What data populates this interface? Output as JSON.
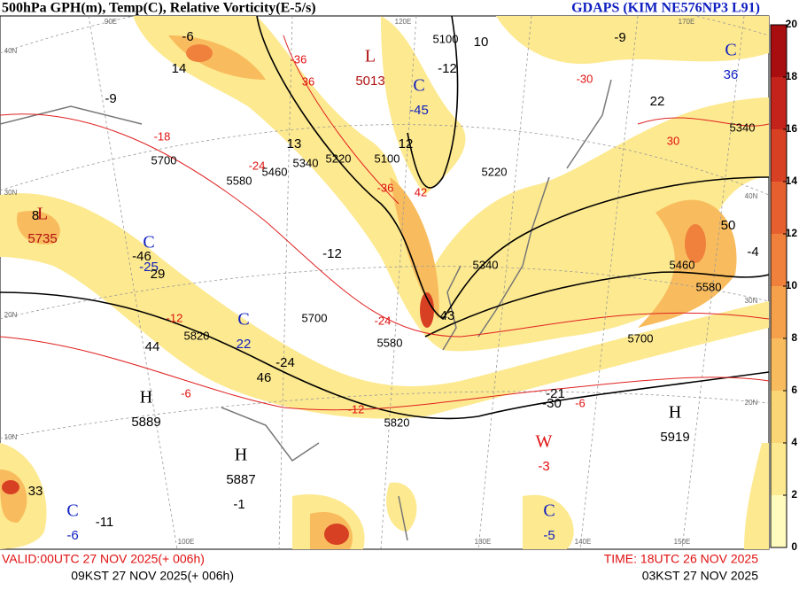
{
  "header": {
    "title": "500hPa GPH(m), Temp(C), Relative Vorticity(E-5/s)",
    "model": "GDAPS (KIM NE576NP3 L91)"
  },
  "colorbar": {
    "ticks": [
      0,
      2,
      4,
      6,
      8,
      10,
      12,
      14,
      16,
      18,
      20
    ],
    "colors": [
      "#fffbbf",
      "#fde98f",
      "#fbd677",
      "#f8bc5e",
      "#f5a04b",
      "#ef813c",
      "#e6602f",
      "#d84024",
      "#c3231a",
      "#a80d10"
    ]
  },
  "footer": {
    "valid_utc": "VALID:00UTC 27 NOV 2025(+ 006h)",
    "valid_kst": "09KST 27 NOV 2025(+ 006h)",
    "time_utc": "TIME: 18UTC 26 NOV 2025",
    "time_kst": "03KST 27 NOV 2025"
  },
  "systems": [
    {
      "letter": "L",
      "value": 5013,
      "color": "#b01010"
    },
    {
      "letter": "C",
      "value": -45,
      "color": "#1020c0"
    },
    {
      "letter": "L",
      "value": 5735,
      "color": "#b01010"
    },
    {
      "letter": "C",
      "value": -25,
      "color": "#1020c0"
    },
    {
      "letter": "C",
      "value": 22,
      "color": "#1020c0"
    },
    {
      "letter": "H",
      "value": 5889,
      "color": "#000000"
    },
    {
      "letter": "H",
      "value": 5887,
      "color": "#000000"
    },
    {
      "letter": "W",
      "value": -3,
      "color": "#e01010"
    },
    {
      "letter": "H",
      "value": 5919,
      "color": "#000000"
    },
    {
      "letter": "C",
      "value": -5,
      "color": "#1020c0"
    },
    {
      "letter": "C",
      "value": -6,
      "color": "#1020c0"
    },
    {
      "letter": "C",
      "value": 36,
      "color": "#1020c0"
    }
  ],
  "height_labels": [
    5100,
    5220,
    5340,
    5460,
    5580,
    5700,
    5820,
    5820,
    5580,
    5340,
    5220,
    5100,
    5460,
    5580,
    5700,
    5340,
    5700
  ],
  "temperature_labels": [
    -36,
    -36,
    -30,
    -24,
    -18,
    -12,
    -12,
    -6,
    -6,
    30,
    42,
    -24,
    36
  ],
  "vorticity_labels": [
    -6,
    14,
    -9,
    10,
    -12,
    -9,
    13,
    12,
    -12,
    -46,
    29,
    44,
    -24,
    46,
    43,
    50,
    -4,
    22,
    -21,
    -30,
    -11,
    8,
    33,
    -1
  ],
  "grid_labels": [
    "40N",
    "30N",
    "20N",
    "10N",
    "40N",
    "30N",
    "20N",
    "90E",
    "120E",
    "130E",
    "140E",
    "150E",
    "170E",
    "100E"
  ]
}
